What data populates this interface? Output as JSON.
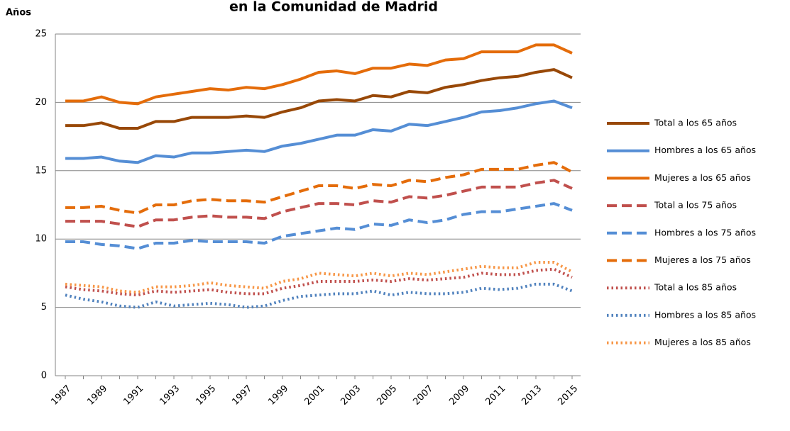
{
  "chart_data": {
    "type": "line",
    "title": "en la Comunidad de Madrid",
    "y_label": "Años",
    "categories": [
      "1987",
      null,
      "1989",
      null,
      "1991",
      null,
      "1993",
      null,
      "1995",
      null,
      "1997",
      null,
      "1999",
      null,
      "2001",
      null,
      "2003",
      null,
      "2005",
      null,
      "2007",
      null,
      "2009",
      null,
      "2011",
      null,
      "2013",
      null,
      "2015"
    ],
    "ylim": [
      0,
      25
    ],
    "yticks": [
      0,
      5,
      10,
      15,
      20,
      25
    ],
    "grid": true,
    "legend": "right",
    "series": [
      {
        "name": "Total a los 65 años",
        "color": "#984807",
        "style": "solid",
        "values": [
          18.3,
          18.3,
          18.5,
          18.1,
          18.1,
          18.6,
          18.6,
          18.9,
          18.9,
          18.9,
          19.0,
          18.9,
          19.3,
          19.6,
          20.1,
          20.2,
          20.1,
          20.5,
          20.4,
          20.8,
          20.7,
          21.1,
          21.3,
          21.6,
          21.8,
          21.9,
          22.2,
          22.4,
          21.8
        ]
      },
      {
        "name": "Hombres a los 65 años",
        "color": "#558ed5",
        "style": "solid",
        "values": [
          15.9,
          15.9,
          16.0,
          15.7,
          15.6,
          16.1,
          16.0,
          16.3,
          16.3,
          16.4,
          16.5,
          16.4,
          16.8,
          17.0,
          17.3,
          17.6,
          17.6,
          18.0,
          17.9,
          18.4,
          18.3,
          18.6,
          18.9,
          19.3,
          19.4,
          19.6,
          19.9,
          20.1,
          19.6
        ]
      },
      {
        "name": "Mujeres a los 65 años",
        "color": "#e46c0a",
        "style": "solid",
        "values": [
          20.1,
          20.1,
          20.4,
          20.0,
          19.9,
          20.4,
          20.6,
          20.8,
          21.0,
          20.9,
          21.1,
          21.0,
          21.3,
          21.7,
          22.2,
          22.3,
          22.1,
          22.5,
          22.5,
          22.8,
          22.7,
          23.1,
          23.2,
          23.7,
          23.7,
          23.7,
          24.2,
          24.2,
          23.6
        ]
      },
      {
        "name": "Total a los 75 años",
        "color": "#c0504d",
        "style": "dashed",
        "values": [
          11.3,
          11.3,
          11.3,
          11.1,
          10.9,
          11.4,
          11.4,
          11.6,
          11.7,
          11.6,
          11.6,
          11.5,
          12.0,
          12.3,
          12.6,
          12.6,
          12.5,
          12.8,
          12.7,
          13.1,
          13.0,
          13.2,
          13.5,
          13.8,
          13.8,
          13.8,
          14.1,
          14.3,
          13.7
        ]
      },
      {
        "name": "Hombres a los 75 años",
        "color": "#558ed5",
        "style": "dashed",
        "values": [
          9.8,
          9.8,
          9.6,
          9.5,
          9.3,
          9.7,
          9.7,
          9.9,
          9.8,
          9.8,
          9.8,
          9.7,
          10.2,
          10.4,
          10.6,
          10.8,
          10.7,
          11.1,
          11.0,
          11.4,
          11.2,
          11.4,
          11.8,
          12.0,
          12.0,
          12.2,
          12.4,
          12.6,
          12.1
        ]
      },
      {
        "name": "Mujeres a los 75 años",
        "color": "#e46c0a",
        "style": "dashed",
        "values": [
          12.3,
          12.3,
          12.4,
          12.1,
          11.9,
          12.5,
          12.5,
          12.8,
          12.9,
          12.8,
          12.8,
          12.7,
          13.1,
          13.5,
          13.9,
          13.9,
          13.7,
          14.0,
          13.9,
          14.3,
          14.2,
          14.5,
          14.7,
          15.1,
          15.1,
          15.1,
          15.4,
          15.6,
          14.9
        ]
      },
      {
        "name": "Total a los 85 años",
        "color": "#c0504d",
        "style": "dotted",
        "values": [
          6.5,
          6.3,
          6.2,
          6.0,
          5.9,
          6.2,
          6.1,
          6.2,
          6.3,
          6.1,
          6.0,
          6.0,
          6.4,
          6.6,
          6.9,
          6.9,
          6.9,
          7.0,
          6.9,
          7.1,
          7.0,
          7.1,
          7.2,
          7.5,
          7.4,
          7.4,
          7.7,
          7.8,
          7.2
        ]
      },
      {
        "name": "Hombres a los 85 años",
        "color": "#4f81bd",
        "style": "dotted",
        "values": [
          5.9,
          5.6,
          5.4,
          5.1,
          5.0,
          5.4,
          5.1,
          5.2,
          5.3,
          5.2,
          5.0,
          5.1,
          5.5,
          5.8,
          5.9,
          6.0,
          6.0,
          6.2,
          5.9,
          6.1,
          6.0,
          6.0,
          6.1,
          6.4,
          6.3,
          6.4,
          6.7,
          6.7,
          6.2
        ]
      },
      {
        "name": "Mujeres a los 85 años",
        "color": "#f79646",
        "style": "dotted",
        "values": [
          6.7,
          6.6,
          6.5,
          6.2,
          6.1,
          6.5,
          6.5,
          6.6,
          6.8,
          6.6,
          6.5,
          6.4,
          6.9,
          7.1,
          7.5,
          7.4,
          7.3,
          7.5,
          7.3,
          7.5,
          7.4,
          7.6,
          7.8,
          8.0,
          7.9,
          7.9,
          8.3,
          8.3,
          7.6
        ]
      }
    ]
  }
}
